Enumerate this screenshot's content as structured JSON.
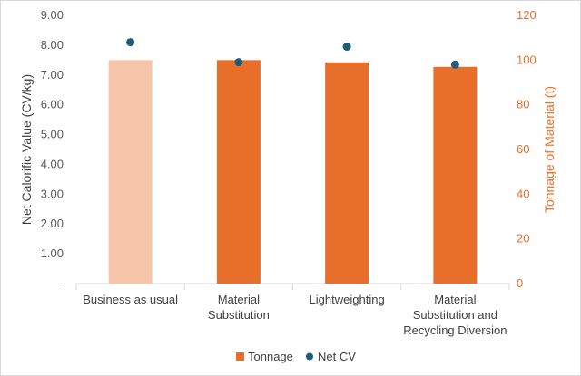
{
  "chart_data": {
    "type": "bar",
    "categories": [
      [
        "Business as usual"
      ],
      [
        "Material",
        "Substitution"
      ],
      [
        "Lightweighting"
      ],
      [
        "Material",
        "Substitution and",
        "Recycling Diversion"
      ]
    ],
    "series": [
      {
        "name": "Tonnage",
        "type": "bar",
        "axis": "right",
        "values": [
          100,
          100,
          99,
          97
        ],
        "colors": [
          "#f6c5aa",
          "#e86f2a",
          "#e86f2a",
          "#e86f2a"
        ]
      },
      {
        "name": "Net CV",
        "type": "scatter",
        "axis": "left",
        "values": [
          8.1,
          7.43,
          7.95,
          7.35
        ],
        "color": "#1f5c78"
      }
    ],
    "y_left": {
      "label": "Net Calorific Value (CV/kg)",
      "lim": [
        0,
        9
      ],
      "ticks": [
        "-",
        "1.00",
        "2.00",
        "3.00",
        "4.00",
        "5.00",
        "6.00",
        "7.00",
        "8.00",
        "9.00"
      ]
    },
    "y_right": {
      "label": "Tonnage of Material (t)",
      "lim": [
        0,
        120
      ],
      "ticks": [
        "0",
        "20",
        "40",
        "60",
        "80",
        "100",
        "120"
      ]
    },
    "legend": {
      "position": "bottom"
    },
    "grid": false
  }
}
